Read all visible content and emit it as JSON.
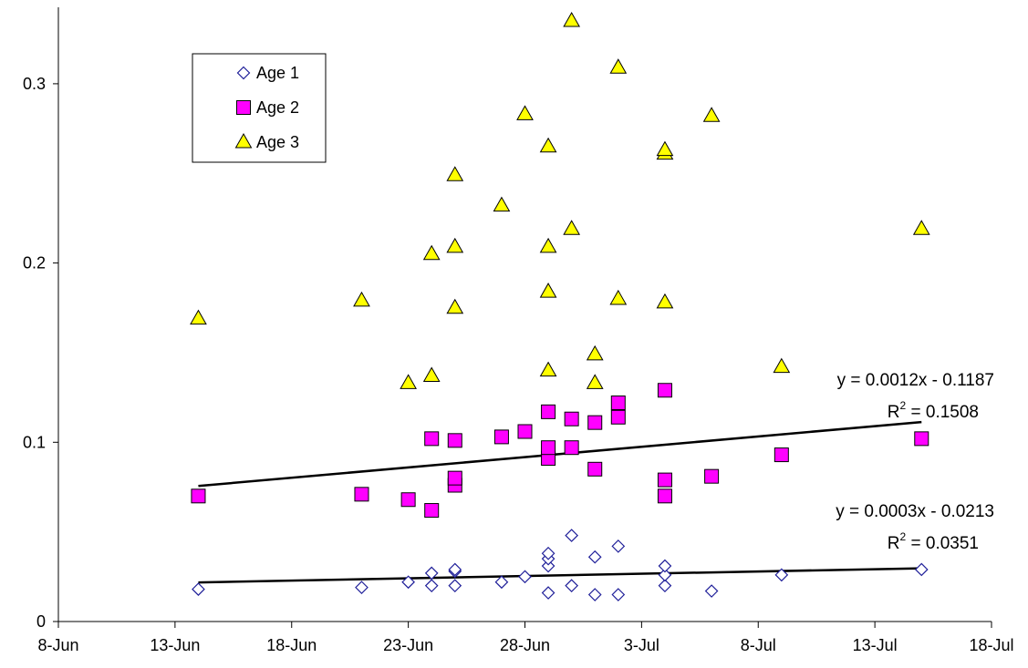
{
  "chart_data": {
    "type": "scatter",
    "title": "",
    "xlabel": "",
    "ylabel": "",
    "x_ticks": [
      "8-Jun",
      "13-Jun",
      "18-Jun",
      "23-Jun",
      "28-Jun",
      "3-Jul",
      "8-Jul",
      "13-Jul",
      "18-Jul"
    ],
    "x_range": [
      "2024-06-08",
      "2024-07-18"
    ],
    "y_ticks": [
      "0",
      "0.1",
      "0.2",
      "0.3"
    ],
    "ylim": [
      0,
      0.3
    ],
    "legend_position": "top-left",
    "grid": false,
    "series": [
      {
        "name": "Age 1",
        "marker": "diamond",
        "color": "#1f1f99",
        "fill": "#ffffff",
        "points": [
          [
            "2024-06-14",
            0.018
          ],
          [
            "2024-06-21",
            0.019
          ],
          [
            "2024-06-23",
            0.022
          ],
          [
            "2024-06-24",
            0.02
          ],
          [
            "2024-06-24",
            0.027
          ],
          [
            "2024-06-25",
            0.02
          ],
          [
            "2024-06-25",
            0.028
          ],
          [
            "2024-06-25",
            0.029
          ],
          [
            "2024-06-27",
            0.022
          ],
          [
            "2024-06-28",
            0.025
          ],
          [
            "2024-06-29",
            0.016
          ],
          [
            "2024-06-29",
            0.031
          ],
          [
            "2024-06-29",
            0.035
          ],
          [
            "2024-06-29",
            0.038
          ],
          [
            "2024-06-30",
            0.02
          ],
          [
            "2024-06-30",
            0.048
          ],
          [
            "2024-07-01",
            0.015
          ],
          [
            "2024-07-01",
            0.036
          ],
          [
            "2024-07-02",
            0.015
          ],
          [
            "2024-07-02",
            0.042
          ],
          [
            "2024-07-04",
            0.02
          ],
          [
            "2024-07-04",
            0.026
          ],
          [
            "2024-07-04",
            0.031
          ],
          [
            "2024-07-06",
            0.017
          ],
          [
            "2024-07-09",
            0.026
          ],
          [
            "2024-07-15",
            0.029
          ]
        ],
        "trendline": {
          "equation": "y = 0.0003x - 0.0213",
          "r2_label": "R",
          "r2_exp": "2",
          "r2_value": " = 0.0351",
          "start": [
            "2024-06-14",
            0.0218
          ],
          "end": [
            "2024-07-15",
            0.0297
          ]
        }
      },
      {
        "name": "Age 2",
        "marker": "square",
        "color": "#000000",
        "fill": "#ff00ff",
        "points": [
          [
            "2024-06-14",
            0.07
          ],
          [
            "2024-06-21",
            0.071
          ],
          [
            "2024-06-23",
            0.068
          ],
          [
            "2024-06-24",
            0.062
          ],
          [
            "2024-06-24",
            0.102
          ],
          [
            "2024-06-25",
            0.076
          ],
          [
            "2024-06-25",
            0.08
          ],
          [
            "2024-06-25",
            0.101
          ],
          [
            "2024-06-27",
            0.103
          ],
          [
            "2024-06-28",
            0.106
          ],
          [
            "2024-06-29",
            0.091
          ],
          [
            "2024-06-29",
            0.097
          ],
          [
            "2024-06-29",
            0.117
          ],
          [
            "2024-06-30",
            0.097
          ],
          [
            "2024-06-30",
            0.113
          ],
          [
            "2024-07-01",
            0.085
          ],
          [
            "2024-07-01",
            0.111
          ],
          [
            "2024-07-02",
            0.114
          ],
          [
            "2024-07-02",
            0.122
          ],
          [
            "2024-07-04",
            0.07
          ],
          [
            "2024-07-04",
            0.079
          ],
          [
            "2024-07-04",
            0.129
          ],
          [
            "2024-07-06",
            0.081
          ],
          [
            "2024-07-09",
            0.093
          ],
          [
            "2024-07-15",
            0.102
          ]
        ],
        "trendline": {
          "equation": "y = 0.0012x - 0.1187",
          "r2_label": "R",
          "r2_exp": "2",
          "r2_value": " = 0.1508",
          "start": [
            "2024-06-14",
            0.0756
          ],
          "end": [
            "2024-07-15",
            0.1113
          ]
        }
      },
      {
        "name": "Age 3",
        "marker": "triangle",
        "color": "#000000",
        "fill": "#ffff00",
        "points": [
          [
            "2024-06-14",
            0.169
          ],
          [
            "2024-06-21",
            0.179
          ],
          [
            "2024-06-23",
            0.133
          ],
          [
            "2024-06-24",
            0.137
          ],
          [
            "2024-06-24",
            0.205
          ],
          [
            "2024-06-25",
            0.175
          ],
          [
            "2024-06-25",
            0.209
          ],
          [
            "2024-06-25",
            0.249
          ],
          [
            "2024-06-27",
            0.232
          ],
          [
            "2024-06-28",
            0.283
          ],
          [
            "2024-06-29",
            0.14
          ],
          [
            "2024-06-29",
            0.184
          ],
          [
            "2024-06-29",
            0.209
          ],
          [
            "2024-06-29",
            0.265
          ],
          [
            "2024-06-30",
            0.219
          ],
          [
            "2024-06-30",
            0.335
          ],
          [
            "2024-07-01",
            0.133
          ],
          [
            "2024-07-01",
            0.149
          ],
          [
            "2024-07-02",
            0.18
          ],
          [
            "2024-07-02",
            0.309
          ],
          [
            "2024-07-04",
            0.178
          ],
          [
            "2024-07-04",
            0.261
          ],
          [
            "2024-07-04",
            0.263
          ],
          [
            "2024-07-06",
            0.282
          ],
          [
            "2024-07-09",
            0.142
          ],
          [
            "2024-07-15",
            0.219
          ]
        ]
      }
    ]
  }
}
